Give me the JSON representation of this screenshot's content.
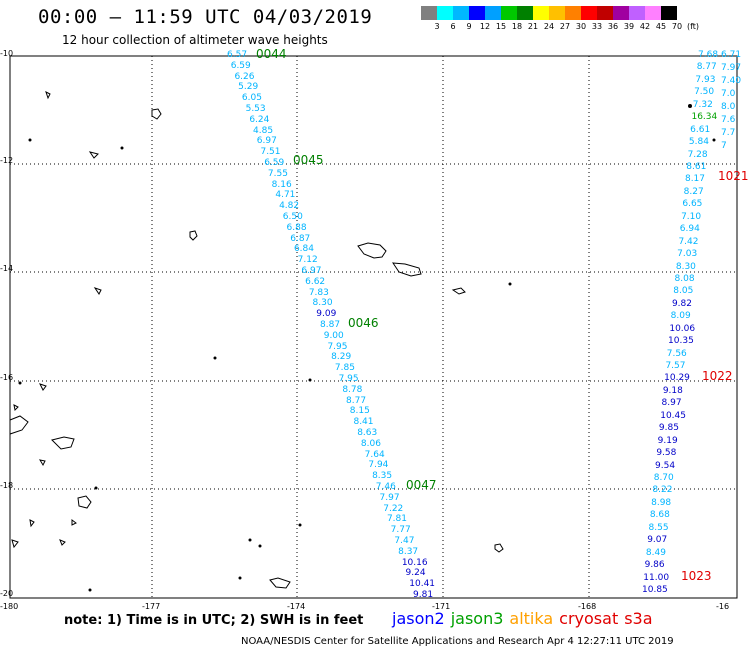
{
  "header": {
    "title": "00:00 – 11:59 UTC 04/03/2019",
    "subtitle": "12 hour collection of altimeter wave heights"
  },
  "color_scale": {
    "labels": [
      "3",
      "6",
      "9",
      "12",
      "15",
      "18",
      "21",
      "24",
      "27",
      "30",
      "33",
      "36",
      "39",
      "42",
      "45",
      "70",
      "(ft)"
    ],
    "colors": [
      "#808080",
      "#00ffff",
      "#00b8ff",
      "#0000ff",
      "#00a0ff",
      "#00c800",
      "#008000",
      "#ffff00",
      "#ffc000",
      "#ff8000",
      "#ff0000",
      "#c00000",
      "#a000a0",
      "#c060ff",
      "#ff80ff",
      "#000000"
    ]
  },
  "axes": {
    "lat_labels": [
      "-10",
      "-12",
      "-14",
      "-16",
      "-18",
      "-20"
    ],
    "lon_labels": [
      "-180",
      "-177",
      "-174",
      "-171",
      "-168",
      "-16"
    ]
  },
  "track1": {
    "values": [
      "6.57",
      "6.59",
      "6.26",
      "5.29",
      "6.05",
      "5.53",
      "6.24",
      "4.85",
      "6.97",
      "7.51",
      "6.59",
      "7.55",
      "8.16",
      "4.71",
      "4.82",
      "6.50",
      "6.88",
      "6.87",
      "6.84",
      "7.12",
      "6.97",
      "6.62",
      "7.83",
      "8.30",
      "9.09",
      "8.87",
      "9.00",
      "7.95",
      "8.29",
      "7.85",
      "7.95",
      "8.78",
      "8.77",
      "8.15",
      "8.41",
      "8.63",
      "8.06",
      "7.64",
      "7.94",
      "8.35",
      "7.46",
      "7.97",
      "7.22",
      "7.81",
      "7.77",
      "7.47",
      "8.37",
      "10.16",
      "9.24",
      "10.41",
      "9.81"
    ],
    "colors": [
      "#00b4ff",
      "#00b4ff",
      "#00b4ff",
      "#00b4ff",
      "#00b4ff",
      "#00b4ff",
      "#00b4ff",
      "#00b4ff",
      "#00b4ff",
      "#00b4ff",
      "#00b4ff",
      "#00b4ff",
      "#00b4ff",
      "#00b4ff",
      "#00b4ff",
      "#00b4ff",
      "#00b4ff",
      "#00b4ff",
      "#00b4ff",
      "#00b4ff",
      "#00b4ff",
      "#00b4ff",
      "#00b4ff",
      "#00b4ff",
      "#0000c8",
      "#00b4ff",
      "#00b4ff",
      "#00b4ff",
      "#00b4ff",
      "#00b4ff",
      "#00b4ff",
      "#00b4ff",
      "#00b4ff",
      "#00b4ff",
      "#00b4ff",
      "#00b4ff",
      "#00b4ff",
      "#00b4ff",
      "#00b4ff",
      "#00b4ff",
      "#00b4ff",
      "#00b4ff",
      "#00b4ff",
      "#00b4ff",
      "#00b4ff",
      "#00b4ff",
      "#00b4ff",
      "#0000c8",
      "#0000c8",
      "#0000c8",
      "#0000c8"
    ]
  },
  "track2": {
    "values": [
      "7.68",
      "8.77",
      "7.93",
      "7.50",
      "7.32",
      "16.34",
      "6.61",
      "5.84",
      "7.28",
      "8.61",
      "8.17",
      "8.27",
      "6.65",
      "7.10",
      "6.94",
      "7.42",
      "7.03",
      "8.30",
      "8.08",
      "8.05",
      "9.82",
      "8.09",
      "10.06",
      "10.35",
      "7.56",
      "7.57",
      "10.29",
      "9.18",
      "8.97",
      "10.45",
      "9.85",
      "9.19",
      "9.58",
      "9.54",
      "8.70",
      "8.22",
      "8.98",
      "8.68",
      "8.55",
      "9.07",
      "8.49",
      "9.86",
      "11.00",
      "10.85"
    ],
    "colors": [
      "#00b4ff",
      "#00b4ff",
      "#00b4ff",
      "#00b4ff",
      "#00b4ff",
      "#00a000",
      "#00b4ff",
      "#00b4ff",
      "#00b4ff",
      "#00b4ff",
      "#00b4ff",
      "#00b4ff",
      "#00b4ff",
      "#00b4ff",
      "#00b4ff",
      "#00b4ff",
      "#00b4ff",
      "#00b4ff",
      "#00b4ff",
      "#00b4ff",
      "#0000c8",
      "#00b4ff",
      "#0000c8",
      "#0000c8",
      "#00b4ff",
      "#00b4ff",
      "#0000c8",
      "#0000c8",
      "#0000c8",
      "#0000c8",
      "#0000c8",
      "#0000c8",
      "#0000c8",
      "#0000c8",
      "#00b4ff",
      "#00b4ff",
      "#00b4ff",
      "#00b4ff",
      "#00b4ff",
      "#0000c8",
      "#00b4ff",
      "#0000c8",
      "#0000c8",
      "#0000c8"
    ]
  },
  "edge_values": [
    "6.71",
    "7.97",
    "7.40",
    "7.0",
    "8.0",
    "7.6",
    "7.7",
    "7"
  ],
  "time_labels": {
    "jason": [
      "0044",
      "0045",
      "0046",
      "0047"
    ],
    "cryosat": [
      "1021",
      "1022",
      "1023"
    ]
  },
  "note": "note:  1) Time is in UTC;  2) SWH is in feet",
  "legend": [
    {
      "name": "jason2",
      "color": "#0000ff"
    },
    {
      "name": "jason3",
      "color": "#00a000"
    },
    {
      "name": "altika",
      "color": "#ffa000"
    },
    {
      "name": "cryosat",
      "color": "#e00000"
    },
    {
      "name": "s3a",
      "color": "#e00000"
    }
  ],
  "credit": "NOAA/NESDIS Center for Satellite Applications and Research   Apr  4 12:27:11 UTC 2019"
}
